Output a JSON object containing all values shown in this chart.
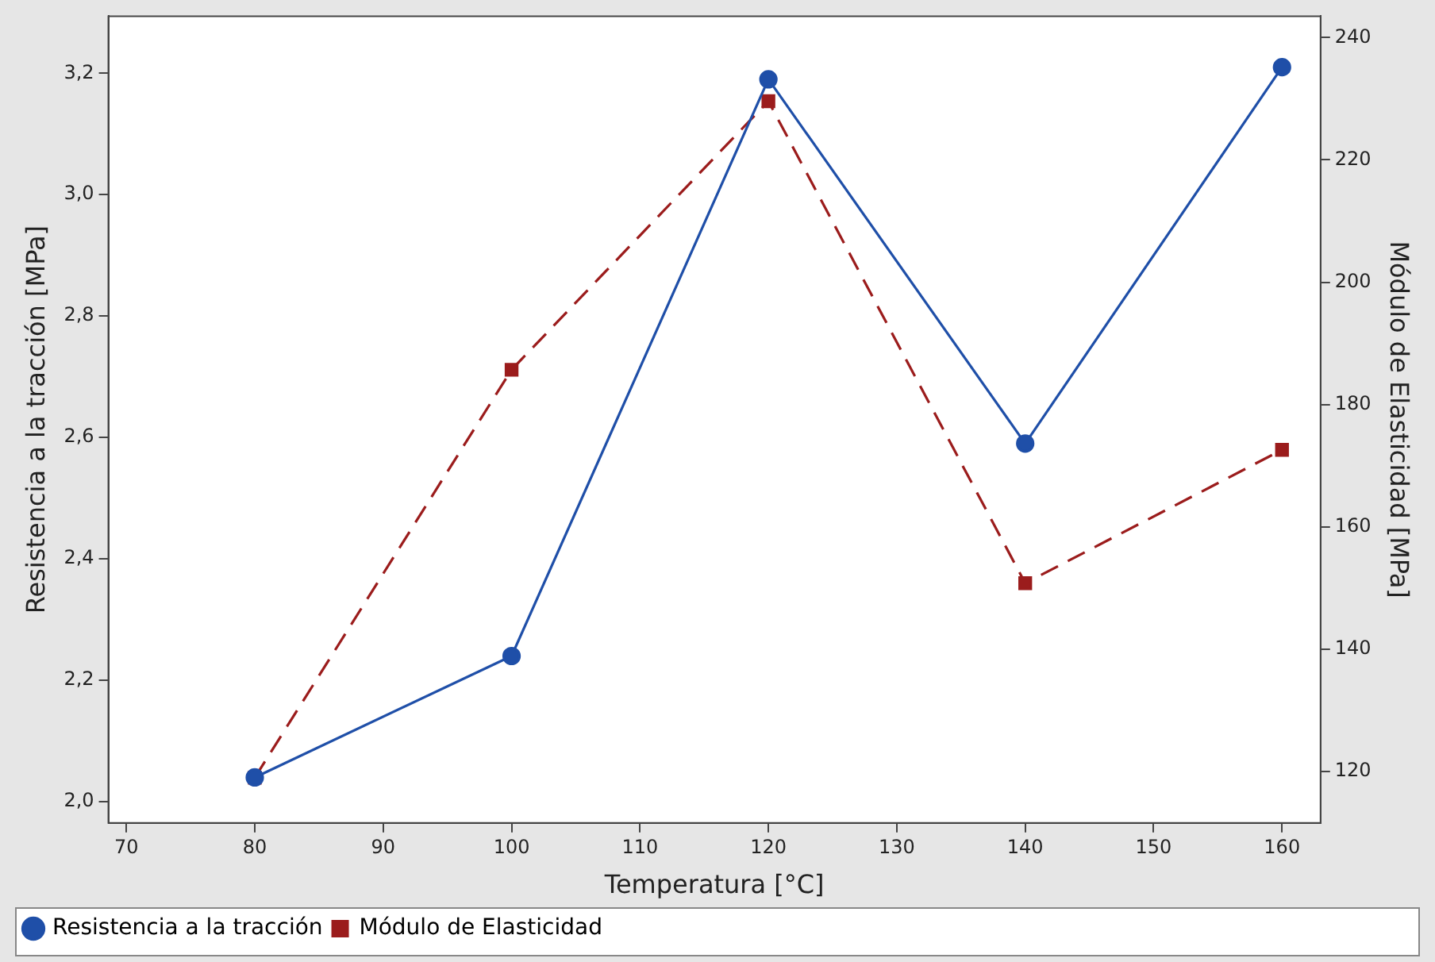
{
  "chart_data": {
    "type": "line",
    "xlabel": "Temperatura [°C]",
    "ylabel": "Resistencia a la tracción [MPa]",
    "y2label": "Módulo de Elasticidad [MPa]",
    "x": [
      80,
      100,
      120,
      140,
      160
    ],
    "xlim": [
      68.6,
      163
    ],
    "xticks": [
      70,
      80,
      90,
      100,
      110,
      120,
      130,
      140,
      150,
      160
    ],
    "ylim": [
      1.965,
      3.294
    ],
    "yticks": [
      {
        "value": 2.0,
        "label": "2,0"
      },
      {
        "value": 2.2,
        "label": "2,2"
      },
      {
        "value": 2.4,
        "label": "2,4"
      },
      {
        "value": 2.6,
        "label": "2,6"
      },
      {
        "value": 2.8,
        "label": "2,8"
      },
      {
        "value": 3.0,
        "label": "3,0"
      },
      {
        "value": 3.2,
        "label": "3,2"
      }
    ],
    "y2lim": [
      111.6,
      243.5
    ],
    "y2ticks": [
      120,
      140,
      160,
      180,
      200,
      220,
      240
    ],
    "grid": false,
    "legend": "bottom left",
    "series": [
      {
        "name": "Resistencia a la tracción",
        "color": "#1f4fa8",
        "values": [
          2.04,
          2.24,
          3.19,
          2.59,
          3.21
        ],
        "marker": "circle",
        "line_style": "solid"
      },
      {
        "name": "Módulo de Elasticidad",
        "color": "#9b1c1c",
        "values": [
          119,
          185.7,
          229.6,
          150.8,
          172.6
        ],
        "marker": "square",
        "line_style": "dashed",
        "axis": "y2"
      }
    ]
  }
}
